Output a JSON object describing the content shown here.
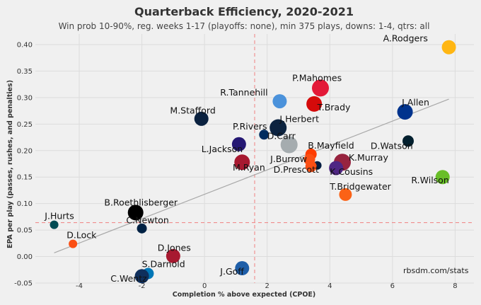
{
  "chart_data": {
    "type": "scatter",
    "title": "Quarterback Efficiency, 2020-2021",
    "subtitle": "Win prob 10-90%, reg. weeks 1-17 (playoffs: none), min 375 plays, downs: 1-4, qtrs: all",
    "xlabel": "Completion % above expected (CPOE)",
    "ylabel": "EPA per play (passes, rushes, and penalties)",
    "xlim": [
      -5.4,
      8.6
    ],
    "ylim": [
      -0.05,
      0.42
    ],
    "xticks": [
      "-4",
      "-2",
      "0",
      "2",
      "4",
      "6",
      "8"
    ],
    "yticks": [
      "-0.05",
      "0.00",
      "0.05",
      "0.10",
      "0.15",
      "0.20",
      "0.25",
      "0.30",
      "0.35",
      "0.40"
    ],
    "grid": true,
    "source": "rbsdm.com/stats",
    "mean_lines": {
      "x": 1.6,
      "y": 0.064,
      "color": "#f08080"
    },
    "trendline": {
      "x": [
        -4.8,
        7.8
      ],
      "y": [
        0.007,
        0.297
      ],
      "color": "#a8a8a8"
    },
    "points": [
      {
        "name": "A.Rodgers",
        "x": 7.8,
        "y": 0.395,
        "color": "#ffb612",
        "size": 10
      },
      {
        "name": "P.Mahomes",
        "x": 3.7,
        "y": 0.318,
        "color": "#e31837",
        "size": 12
      },
      {
        "name": "R.Tannehill",
        "x": 2.4,
        "y": 0.293,
        "color": "#4b92db",
        "size": 10
      },
      {
        "name": "T.Brady",
        "x": 3.5,
        "y": 0.288,
        "color": "#d50a0a",
        "size": 11
      },
      {
        "name": "J.Allen",
        "x": 6.4,
        "y": 0.273,
        "color": "#00338d",
        "size": 11
      },
      {
        "name": "M.Stafford",
        "x": -0.1,
        "y": 0.26,
        "color": "#0b2240",
        "size": 10
      },
      {
        "name": "J.Herbert",
        "x": 2.35,
        "y": 0.243,
        "color": "#0c2340",
        "size": 12
      },
      {
        "name": "P.Rivers",
        "x": 1.9,
        "y": 0.23,
        "color": "#002c5f",
        "size": 7
      },
      {
        "name": "D.Carr",
        "x": 2.7,
        "y": 0.211,
        "color": "#a5acaf",
        "size": 12
      },
      {
        "name": "D.Watson",
        "x": 6.5,
        "y": 0.218,
        "color": "#03202f",
        "size": 8
      },
      {
        "name": "L.Jackson",
        "x": 1.1,
        "y": 0.212,
        "color": "#241773",
        "size": 10
      },
      {
        "name": "B.Mayfield",
        "x": 3.4,
        "y": 0.193,
        "color": "#ff3c00",
        "size": 8
      },
      {
        "name": "K.Murray",
        "x": 4.4,
        "y": 0.178,
        "color": "#97233f",
        "size": 12
      },
      {
        "name": "M.Ryan",
        "x": 1.2,
        "y": 0.178,
        "color": "#a71930",
        "size": 11
      },
      {
        "name": "J.Burrow",
        "x": 3.35,
        "y": 0.183,
        "color": "#fb4f14",
        "size": 8
      },
      {
        "name": "K.Cousins",
        "x": 4.2,
        "y": 0.167,
        "color": "#4f2683",
        "size": 10
      },
      {
        "name": "D.Prescott",
        "x": 3.6,
        "y": 0.172,
        "color": "#041e42",
        "size": 6
      },
      {
        "name": "D.Prescott",
        "x": 3.4,
        "y": 0.17,
        "color": "#fb4f14",
        "size": 8
      },
      {
        "name": "R.Wilson",
        "x": 7.6,
        "y": 0.15,
        "color": "#69be28",
        "size": 10
      },
      {
        "name": "T.Bridgewater",
        "x": 4.5,
        "y": 0.117,
        "color": "#fb6216",
        "size": 9
      },
      {
        "name": "B.Roethlisberger",
        "x": -2.2,
        "y": 0.083,
        "color": "#000000",
        "size": 11
      },
      {
        "name": "J.Hurts",
        "x": -4.8,
        "y": 0.06,
        "color": "#004c54",
        "size": 6
      },
      {
        "name": "C.Newton",
        "x": -2.0,
        "y": 0.053,
        "color": "#002244",
        "size": 7
      },
      {
        "name": "D.Lock",
        "x": -4.2,
        "y": 0.024,
        "color": "#fb4f14",
        "size": 6
      },
      {
        "name": "D.Jones",
        "x": -1.0,
        "y": 0.001,
        "color": "#a71930",
        "size": 10
      },
      {
        "name": "S.Darnold",
        "x": -1.8,
        "y": -0.032,
        "color": "#0076b6",
        "size": 8
      },
      {
        "name": "C.Wentz",
        "x": -2.0,
        "y": -0.037,
        "color": "#0f2f5c",
        "size": 10
      },
      {
        "name": "J.Goff",
        "x": 1.2,
        "y": -0.022,
        "color": "#1e5ea8",
        "size": 10
      }
    ],
    "labels": [
      {
        "text": "A.Rodgers",
        "x": 5.7,
        "y": 0.406
      },
      {
        "text": "P.Mahomes",
        "x": 2.8,
        "y": 0.331
      },
      {
        "text": "R.Tannehill",
        "x": 0.5,
        "y": 0.304
      },
      {
        "text": "T.Brady",
        "x": 3.6,
        "y": 0.276
      },
      {
        "text": "J.Allen",
        "x": 6.3,
        "y": 0.285
      },
      {
        "text": "M.Stafford",
        "x": -1.1,
        "y": 0.27
      },
      {
        "text": "J.Herbert",
        "x": 2.4,
        "y": 0.254
      },
      {
        "text": "P.Rivers",
        "x": 0.9,
        "y": 0.24
      },
      {
        "text": "D.Carr",
        "x": 2.0,
        "y": 0.222
      },
      {
        "text": "D.Watson",
        "x": 5.3,
        "y": 0.203
      },
      {
        "text": "L.Jackson",
        "x": -0.1,
        "y": 0.197
      },
      {
        "text": "B.Mayfield",
        "x": 3.3,
        "y": 0.204
      },
      {
        "text": "K.Murray",
        "x": 4.6,
        "y": 0.181
      },
      {
        "text": "M.Ryan",
        "x": 0.9,
        "y": 0.162
      },
      {
        "text": "J.Burrow",
        "x": 2.1,
        "y": 0.178
      },
      {
        "text": "K.Cousins",
        "x": 4.0,
        "y": 0.154
      },
      {
        "text": "D.Prescott",
        "x": 2.2,
        "y": 0.158
      },
      {
        "text": "R.Wilson",
        "x": 6.6,
        "y": 0.138
      },
      {
        "text": "T.Bridgewater",
        "x": 4.0,
        "y": 0.126
      },
      {
        "text": "B.Roethlisberger",
        "x": -3.2,
        "y": 0.096
      },
      {
        "text": "J.Hurts",
        "x": -5.1,
        "y": 0.071
      },
      {
        "text": "C.Newton",
        "x": -2.5,
        "y": 0.063
      },
      {
        "text": "D.Lock",
        "x": -4.4,
        "y": 0.035
      },
      {
        "text": "D.Jones",
        "x": -1.5,
        "y": 0.011
      },
      {
        "text": "S.Darnold",
        "x": -2.0,
        "y": -0.02
      },
      {
        "text": "C.Wentz",
        "x": -3.0,
        "y": -0.047
      },
      {
        "text": "J.Goff",
        "x": 0.5,
        "y": -0.034
      }
    ]
  }
}
